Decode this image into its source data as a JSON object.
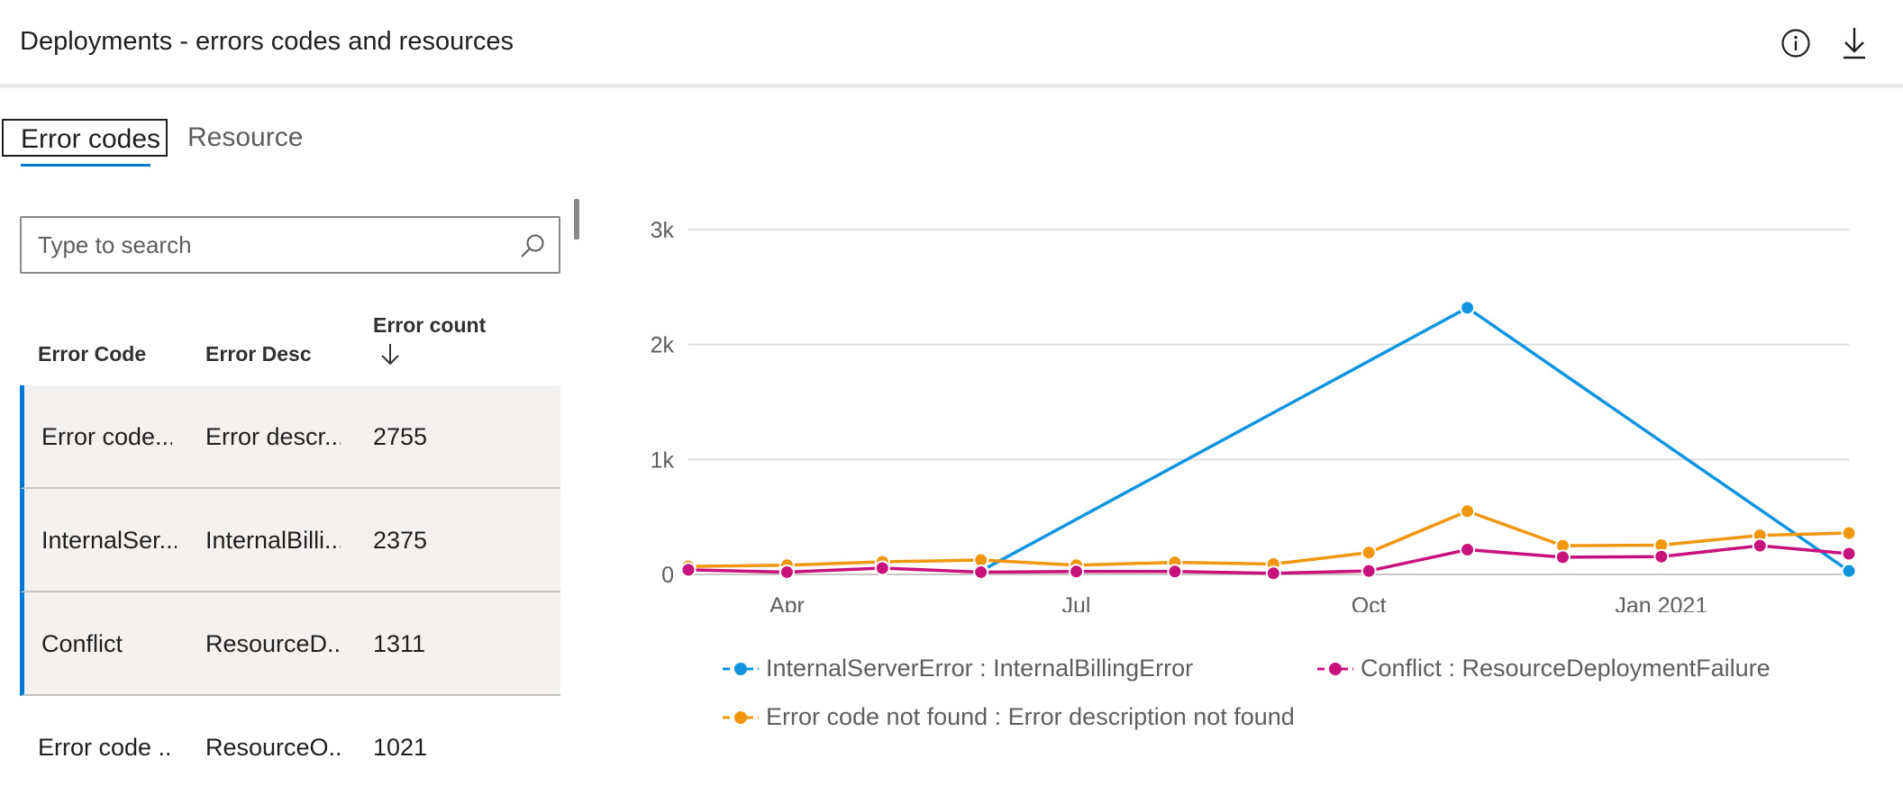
{
  "header": {
    "title": "Deployments - errors codes and resources",
    "info_icon": "info-icon",
    "download_icon": "download-icon"
  },
  "tabs": [
    {
      "label": "Error codes",
      "active": true
    },
    {
      "label": "Resource",
      "active": false
    }
  ],
  "search": {
    "placeholder": "Type to search",
    "value": "",
    "icon": "search-icon"
  },
  "table": {
    "columns": [
      "Error Code",
      "Error Desc",
      "Error count"
    ],
    "sort_icon": "arrow-down-icon",
    "rows": [
      {
        "code": "Error code...",
        "desc": "Error descr...",
        "count": "2755",
        "selected": true
      },
      {
        "code": "InternalSer...",
        "desc": "InternalBilli...",
        "count": "2375",
        "selected": true
      },
      {
        "code": "Conflict",
        "desc": "ResourceD...",
        "count": "1311",
        "selected": true
      },
      {
        "code": "Error code ...",
        "desc": "ResourceO...",
        "count": "1021",
        "selected": false
      }
    ]
  },
  "chart_data": {
    "type": "line",
    "x": [
      "2020-03-01",
      "2020-04-01",
      "2020-05-01",
      "2020-06-01",
      "2020-07-01",
      "2020-08-01",
      "2020-09-01",
      "2020-10-01",
      "2020-11-01",
      "2020-12-01",
      "2021-01-01",
      "2021-02-01",
      "2021-03-01"
    ],
    "x_ticks": [
      "Apr",
      "Jul",
      "Oct",
      "Jan 2021"
    ],
    "x_tick_values": [
      "2020-04-01",
      "2020-07-01",
      "2020-10-01",
      "2021-01-01"
    ],
    "xlim": [
      "2020-03-01",
      "2021-03-01"
    ],
    "y_ticks": [
      "0",
      "1k",
      "2k",
      "3k"
    ],
    "y_tick_values": [
      0,
      1000,
      2000,
      3000
    ],
    "ylim": [
      0,
      3000
    ],
    "grid": true,
    "legend_position": "bottom",
    "series": [
      {
        "name": "InternalServerError : InternalBillingError",
        "color": "#0f94e0",
        "points": [
          [
            "2020-06-01",
            30
          ],
          [
            "2020-11-01",
            2320
          ],
          [
            "2021-03-01",
            30
          ]
        ]
      },
      {
        "name": "Conflict : ResourceDeploymentFailure",
        "color": "#c8117c",
        "points": [
          [
            "2020-03-01",
            40
          ],
          [
            "2020-04-01",
            20
          ],
          [
            "2020-05-01",
            55
          ],
          [
            "2020-06-01",
            20
          ],
          [
            "2020-07-01",
            25
          ],
          [
            "2020-08-01",
            25
          ],
          [
            "2020-09-01",
            10
          ],
          [
            "2020-10-01",
            30
          ],
          [
            "2020-11-01",
            215
          ],
          [
            "2020-12-01",
            150
          ],
          [
            "2021-01-01",
            155
          ],
          [
            "2021-02-01",
            250
          ],
          [
            "2021-03-01",
            180
          ]
        ]
      },
      {
        "name": "Error code not found : Error description not found",
        "color": "#f0960f",
        "points": [
          [
            "2020-03-01",
            70
          ],
          [
            "2020-04-01",
            80
          ],
          [
            "2020-05-01",
            110
          ],
          [
            "2020-06-01",
            125
          ],
          [
            "2020-07-01",
            80
          ],
          [
            "2020-08-01",
            105
          ],
          [
            "2020-09-01",
            90
          ],
          [
            "2020-10-01",
            190
          ],
          [
            "2020-11-01",
            550
          ],
          [
            "2020-12-01",
            250
          ],
          [
            "2021-01-01",
            255
          ],
          [
            "2021-02-01",
            340
          ],
          [
            "2021-03-01",
            360
          ]
        ]
      }
    ]
  }
}
